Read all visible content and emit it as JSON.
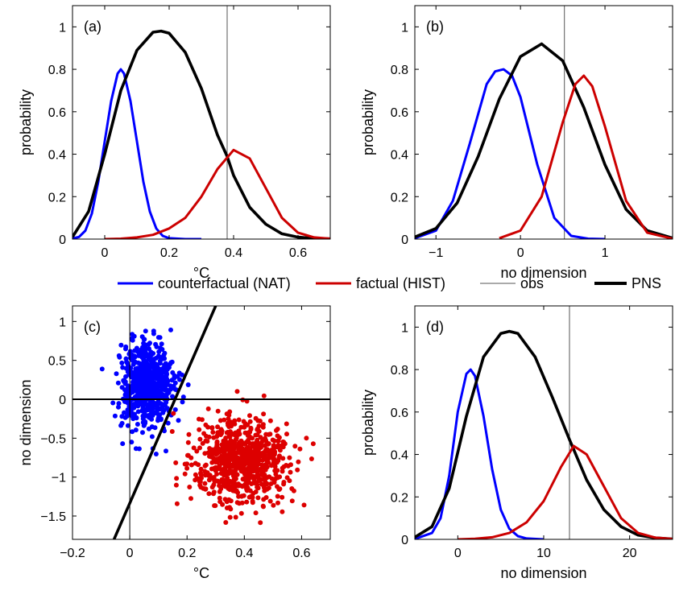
{
  "chart_data": [
    {
      "panel_label": "(a)",
      "type": "line",
      "xlabel": "°C",
      "ylabel": "probability",
      "xlim": [
        -0.1,
        0.7
      ],
      "ylim": [
        0,
        1.1
      ],
      "xticks": [
        0,
        0.2,
        0.4,
        0.6
      ],
      "yticks": [
        0,
        0.2,
        0.4,
        0.6,
        0.8,
        1
      ],
      "xticklabels": [
        "0",
        "0.2",
        "0.4",
        "0.6"
      ],
      "yticklabels": [
        "0",
        "0.2",
        "0.4",
        "0.6",
        "0.8",
        "1"
      ],
      "obs": 0.38,
      "series": [
        {
          "color": "#0000ff",
          "x": [
            -0.1,
            -0.08,
            -0.06,
            -0.04,
            -0.02,
            0,
            0.02,
            0.04,
            0.05,
            0.06,
            0.08,
            0.1,
            0.12,
            0.14,
            0.16,
            0.18,
            0.2,
            0.25,
            0.3
          ],
          "y": [
            0.003,
            0.01,
            0.04,
            0.12,
            0.27,
            0.46,
            0.65,
            0.78,
            0.8,
            0.78,
            0.65,
            0.46,
            0.27,
            0.13,
            0.05,
            0.015,
            0.004,
            0,
            0
          ]
        },
        {
          "color": "#000000",
          "x": [
            -0.1,
            -0.05,
            0,
            0.05,
            0.1,
            0.15,
            0.175,
            0.2,
            0.25,
            0.3,
            0.35,
            0.38,
            0.4,
            0.45,
            0.5,
            0.55,
            0.6,
            0.65,
            0.7
          ],
          "y": [
            0.01,
            0.13,
            0.4,
            0.7,
            0.89,
            0.975,
            0.98,
            0.97,
            0.88,
            0.71,
            0.49,
            0.39,
            0.3,
            0.15,
            0.07,
            0.025,
            0.009,
            0.003,
            0.001
          ]
        },
        {
          "color": "#cc0000",
          "x": [
            0,
            0.05,
            0.1,
            0.15,
            0.2,
            0.25,
            0.3,
            0.35,
            0.4,
            0.45,
            0.5,
            0.55,
            0.6,
            0.65,
            0.7
          ],
          "y": [
            0,
            0.002,
            0.008,
            0.02,
            0.05,
            0.1,
            0.2,
            0.33,
            0.42,
            0.38,
            0.24,
            0.1,
            0.03,
            0.008,
            0.002
          ]
        }
      ]
    },
    {
      "panel_label": "(b)",
      "type": "line",
      "xlabel": "no dimension",
      "ylabel": "probability",
      "xlim": [
        -1.25,
        1.8
      ],
      "ylim": [
        0,
        1.1
      ],
      "xticks": [
        -1,
        0,
        1
      ],
      "yticks": [
        0,
        0.2,
        0.4,
        0.6,
        0.8,
        1
      ],
      "xticklabels": [
        "−1",
        "0",
        "1"
      ],
      "yticklabels": [
        "0",
        "0.2",
        "0.4",
        "0.6",
        "0.8",
        "1"
      ],
      "obs": 0.52,
      "series": [
        {
          "color": "#0000ff",
          "x": [
            -1.25,
            -1,
            -0.8,
            -0.6,
            -0.4,
            -0.3,
            -0.2,
            -0.1,
            0,
            0.2,
            0.4,
            0.6,
            0.8,
            1.0
          ],
          "y": [
            0.004,
            0.04,
            0.18,
            0.45,
            0.73,
            0.79,
            0.8,
            0.77,
            0.67,
            0.35,
            0.1,
            0.015,
            0.002,
            0
          ]
        },
        {
          "color": "#000000",
          "x": [
            -1.25,
            -1,
            -0.75,
            -0.5,
            -0.25,
            0,
            0.25,
            0.5,
            0.75,
            1,
            1.25,
            1.5,
            1.8
          ],
          "y": [
            0.01,
            0.05,
            0.17,
            0.39,
            0.66,
            0.86,
            0.92,
            0.84,
            0.62,
            0.35,
            0.14,
            0.04,
            0.005
          ]
        },
        {
          "color": "#cc0000",
          "x": [
            -0.25,
            0,
            0.25,
            0.5,
            0.65,
            0.75,
            0.85,
            1,
            1.25,
            1.5,
            1.8
          ],
          "y": [
            0.004,
            0.04,
            0.2,
            0.55,
            0.73,
            0.77,
            0.72,
            0.53,
            0.18,
            0.03,
            0.002
          ]
        }
      ]
    },
    {
      "panel_label": "(c)",
      "type": "scatter",
      "xlabel": "°C",
      "ylabel": "no dimension",
      "xlim": [
        -0.2,
        0.7
      ],
      "ylim": [
        -1.8,
        1.2
      ],
      "xticks": [
        -0.2,
        0,
        0.2,
        0.4,
        0.6
      ],
      "yticks": [
        -1.5,
        -1,
        -0.5,
        0,
        0.5,
        1
      ],
      "xticklabels": [
        "−0.2",
        "0",
        "0.2",
        "0.4",
        "0.6"
      ],
      "yticklabels": [
        "−1.5",
        "−1",
        "−0.5",
        "0",
        "0.5",
        "1"
      ],
      "hline": 0,
      "vline": 0,
      "separator_line": {
        "x": [
          -0.055,
          0.3
        ],
        "y": [
          -1.8,
          1.2
        ]
      },
      "clouds": [
        {
          "color": "#0000ff",
          "center": [
            0.06,
            0.2
          ],
          "spread": [
            0.045,
            0.27
          ],
          "count": 650
        },
        {
          "color": "#dd0000",
          "center": [
            0.39,
            -0.8
          ],
          "spread": [
            0.085,
            0.27
          ],
          "count": 750
        }
      ]
    },
    {
      "panel_label": "(d)",
      "type": "line",
      "xlabel": "no dimension",
      "ylabel": "probability",
      "xlim": [
        -5,
        25
      ],
      "ylim": [
        0,
        1.1
      ],
      "xticks": [
        0,
        10,
        20
      ],
      "yticks": [
        0,
        0.2,
        0.4,
        0.6,
        0.8,
        1
      ],
      "xticklabels": [
        "0",
        "10",
        "20"
      ],
      "yticklabels": [
        "0",
        "0.2",
        "0.4",
        "0.6",
        "0.8",
        "1"
      ],
      "obs": 13,
      "series": [
        {
          "color": "#0000ff",
          "x": [
            -5,
            -3,
            -2,
            -1,
            0,
            1,
            1.5,
            2,
            3,
            4,
            5,
            6,
            7,
            8,
            10
          ],
          "y": [
            0.002,
            0.03,
            0.1,
            0.3,
            0.6,
            0.78,
            0.8,
            0.77,
            0.58,
            0.33,
            0.14,
            0.05,
            0.015,
            0.004,
            0
          ]
        },
        {
          "color": "#000000",
          "x": [
            -5,
            -3,
            -1,
            1,
            3,
            5,
            6,
            7,
            9,
            11,
            13,
            15,
            17,
            19,
            21,
            23,
            25
          ],
          "y": [
            0.01,
            0.06,
            0.24,
            0.58,
            0.86,
            0.97,
            0.98,
            0.97,
            0.86,
            0.67,
            0.47,
            0.28,
            0.14,
            0.06,
            0.02,
            0.007,
            0.002
          ]
        },
        {
          "color": "#cc0000",
          "x": [
            0,
            2,
            4,
            6,
            8,
            10,
            12,
            13.5,
            15,
            17,
            19,
            21,
            23,
            25
          ],
          "y": [
            0,
            0.003,
            0.01,
            0.03,
            0.08,
            0.18,
            0.34,
            0.44,
            0.4,
            0.25,
            0.1,
            0.03,
            0.008,
            0.002
          ]
        }
      ]
    }
  ],
  "legend": [
    {
      "label": "counterfactual (NAT)",
      "color": "#0000ff",
      "width": 3
    },
    {
      "label": "factual (HIST)",
      "color": "#cc0000",
      "width": 3
    },
    {
      "label": "obs",
      "color": "#555555",
      "width": 1
    },
    {
      "label": "PNS",
      "color": "#000000",
      "width": 4
    }
  ]
}
